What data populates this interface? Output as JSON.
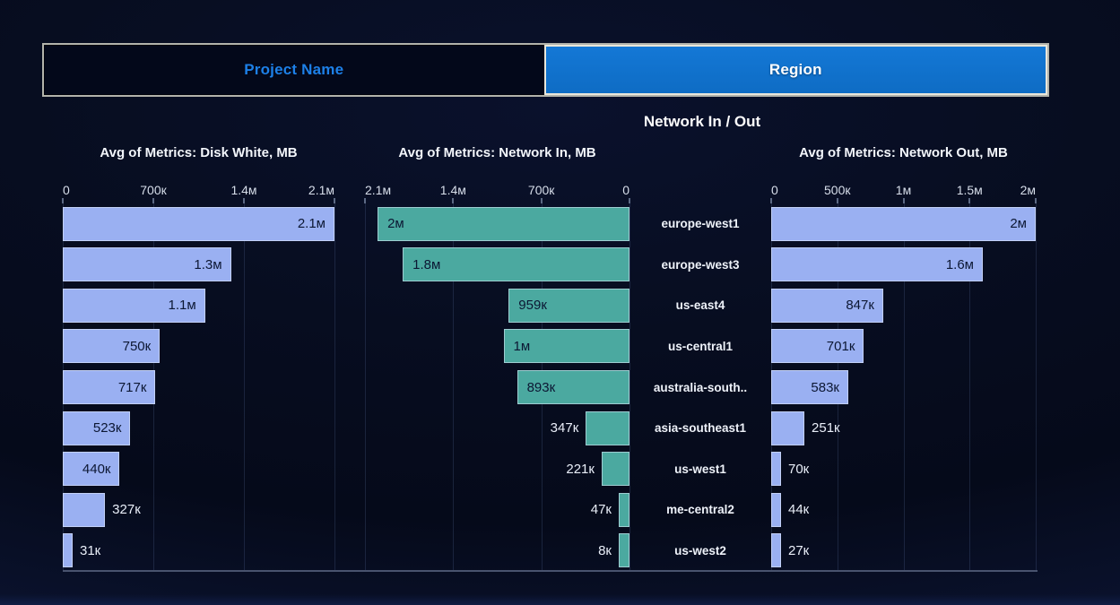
{
  "tabs": {
    "items": [
      {
        "label": "Project Name",
        "active": false
      },
      {
        "label": "Region",
        "active": true
      }
    ]
  },
  "header": {
    "title": "Network In / Out"
  },
  "colors": {
    "active_tab": "#0e6cc4",
    "active_tab_light": "#1478d6",
    "inactive_tab_text": "#1d80e8",
    "bar_blue": "#9ab0f2",
    "bar_teal": "#4ba9a0",
    "background": "#060b1d"
  },
  "chart_data": {
    "type": "bar",
    "orientation": "horizontal",
    "grid": true,
    "categories": [
      "europe-west1",
      "europe-west3",
      "us-east4",
      "us-central1",
      "australia-south..",
      "asia-southeast1",
      "us-west1",
      "me-central2",
      "us-west2"
    ],
    "series": [
      {
        "name": "Avg of Metrics: Disk White, MB",
        "direction": "ltr",
        "color": "#9ab0f2",
        "axis_ticks": [
          "0",
          "700к",
          "1.4м",
          "2.1м"
        ],
        "axis_range": [
          0,
          2100000
        ],
        "values": [
          2100000,
          1300000,
          1100000,
          750000,
          717000,
          523000,
          440000,
          327000,
          31000
        ],
        "value_labels": [
          "2.1м",
          "1.3м",
          "1.1м",
          "750к",
          "717к",
          "523к",
          "440к",
          "327к",
          "31к"
        ]
      },
      {
        "name": "Avg of Metrics: Network In, MB",
        "direction": "rtl",
        "color": "#4ba9a0",
        "axis_ticks": [
          "2.1м",
          "1.4м",
          "700к",
          "0"
        ],
        "axis_range": [
          0,
          2100000
        ],
        "values": [
          2000000,
          1800000,
          959000,
          1000000,
          893000,
          347000,
          221000,
          47000,
          8000
        ],
        "value_labels": [
          "2м",
          "1.8м",
          "959к",
          "1м",
          "893к",
          "347к",
          "221к",
          "47к",
          "8к"
        ]
      },
      {
        "name": "Avg of Metrics: Network Out, MB",
        "direction": "ltr",
        "color": "#9ab0f2",
        "axis_ticks": [
          "0",
          "500к",
          "1м",
          "1.5м",
          "2м"
        ],
        "axis_range": [
          0,
          2000000
        ],
        "values": [
          2000000,
          1600000,
          847000,
          701000,
          583000,
          251000,
          70000,
          44000,
          27000
        ],
        "value_labels": [
          "2м",
          "1.6м",
          "847к",
          "701к",
          "583к",
          "251к",
          "70к",
          "44к",
          "27к"
        ]
      }
    ]
  }
}
